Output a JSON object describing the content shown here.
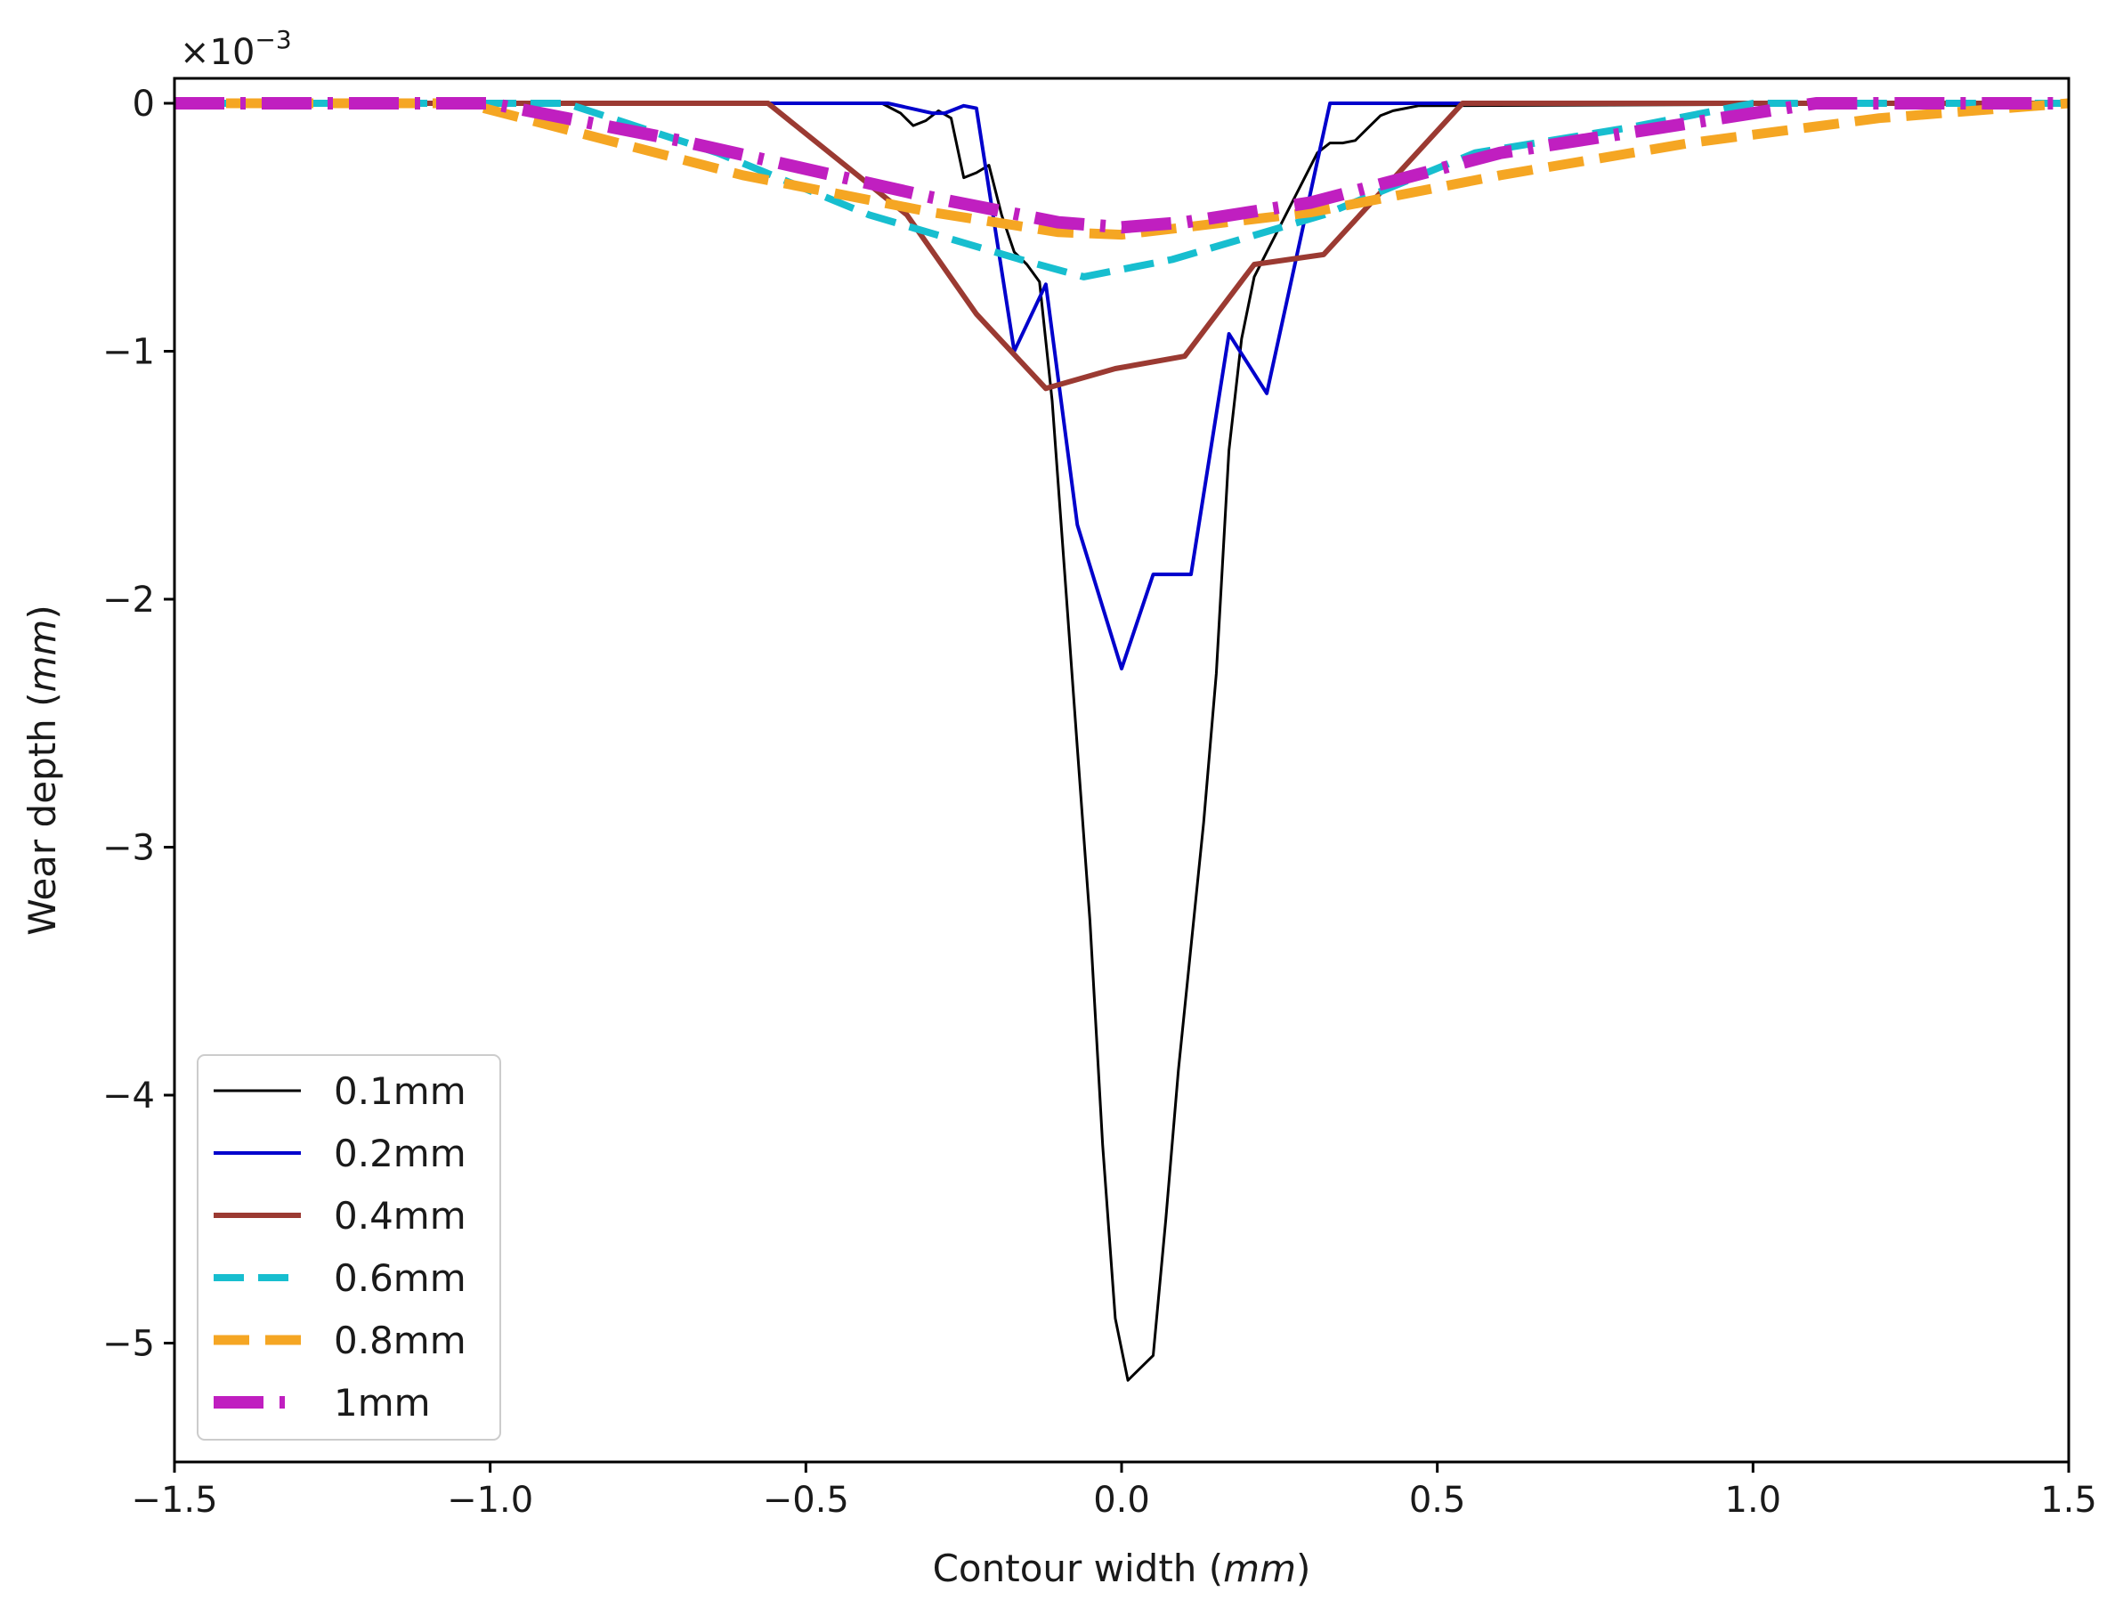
{
  "chart_data": {
    "type": "line",
    "xlabel": "Contour width",
    "xlabel_unit": "mm",
    "ylabel": "Wear depth",
    "ylabel_unit": "mm",
    "y_multiplier": "×10",
    "y_multiplier_exp": "−3",
    "xlim": [
      -1.5,
      1.5
    ],
    "ylim": [
      -5.5,
      0.1
    ],
    "xticks": [
      -1.5,
      -1.0,
      -0.5,
      0.0,
      0.5,
      1.0,
      1.5
    ],
    "xtick_labels": [
      "−1.5",
      "−1.0",
      "−0.5",
      "0.0",
      "0.5",
      "1.0",
      "1.5"
    ],
    "yticks": [
      0,
      -1,
      -2,
      -3,
      -4,
      -5
    ],
    "ytick_labels": [
      "0",
      "−1",
      "−2",
      "−3",
      "−4",
      "−5"
    ],
    "grid": false,
    "legend_position": "lower-left",
    "series": [
      {
        "name": "0.1mm",
        "color": "#000000",
        "style": "solid",
        "x": [
          -1.5,
          -0.38,
          -0.35,
          -0.33,
          -0.31,
          -0.29,
          -0.27,
          -0.25,
          -0.23,
          -0.21,
          -0.19,
          -0.17,
          -0.15,
          -0.13,
          -0.11,
          -0.09,
          -0.07,
          -0.05,
          -0.03,
          -0.01,
          0.01,
          0.03,
          0.05,
          0.07,
          0.09,
          0.11,
          0.13,
          0.15,
          0.17,
          0.19,
          0.21,
          0.23,
          0.25,
          0.27,
          0.29,
          0.31,
          0.33,
          0.35,
          0.37,
          0.39,
          0.41,
          0.43,
          0.45,
          0.47,
          1.5
        ],
        "y": [
          0,
          0,
          -0.04,
          -0.09,
          -0.07,
          -0.03,
          -0.06,
          -0.3,
          -0.28,
          -0.25,
          -0.45,
          -0.6,
          -0.65,
          -0.72,
          -1.2,
          -1.9,
          -2.6,
          -3.3,
          -4.2,
          -4.9,
          -5.15,
          -5.1,
          -5.05,
          -4.5,
          -3.9,
          -3.4,
          -2.9,
          -2.3,
          -1.4,
          -0.95,
          -0.7,
          -0.6,
          -0.5,
          -0.4,
          -0.3,
          -0.2,
          -0.16,
          -0.16,
          -0.15,
          -0.1,
          -0.05,
          -0.03,
          -0.02,
          -0.01,
          0
        ]
      },
      {
        "name": "0.2mm",
        "color": "#0000cc",
        "style": "solid",
        "x": [
          -1.5,
          -0.37,
          -0.3,
          -0.28,
          -0.25,
          -0.23,
          -0.17,
          -0.12,
          -0.07,
          0.0,
          0.05,
          0.11,
          0.17,
          0.23,
          0.33,
          0.5,
          1.5
        ],
        "y": [
          0,
          0,
          -0.04,
          -0.04,
          -0.01,
          -0.02,
          -1.0,
          -0.73,
          -1.7,
          -2.28,
          -1.9,
          -1.9,
          -0.93,
          -1.17,
          0,
          0,
          0
        ]
      },
      {
        "name": "0.4mm",
        "color": "#9b3a32",
        "style": "solid",
        "x": [
          -1.5,
          -0.56,
          -0.34,
          -0.23,
          -0.12,
          -0.01,
          0.1,
          0.21,
          0.32,
          0.54,
          1.5
        ],
        "y": [
          0,
          0,
          -0.45,
          -0.85,
          -1.15,
          -1.07,
          -1.02,
          -0.65,
          -0.61,
          0,
          0
        ]
      },
      {
        "name": "0.6mm",
        "color": "#17becf",
        "style": "dashed",
        "x": [
          -1.5,
          -0.88,
          -0.64,
          -0.4,
          -0.16,
          -0.06,
          0.08,
          0.32,
          0.56,
          0.8,
          1.0,
          1.5
        ],
        "y": [
          0,
          0,
          -0.2,
          -0.45,
          -0.63,
          -0.7,
          -0.63,
          -0.45,
          -0.2,
          -0.1,
          0,
          0
        ]
      },
      {
        "name": "0.8mm",
        "color": "#f5a623",
        "style": "dashed",
        "x": [
          -1.5,
          -1.04,
          -0.6,
          -0.3,
          -0.1,
          0.0,
          0.1,
          0.3,
          0.6,
          0.9,
          1.2,
          1.5
        ],
        "y": [
          0,
          0,
          -0.29,
          -0.44,
          -0.52,
          -0.53,
          -0.5,
          -0.44,
          -0.29,
          -0.16,
          -0.06,
          0
        ]
      },
      {
        "name": "1mm",
        "color": "#c01fc0",
        "style": "dashdot",
        "x": [
          -1.5,
          -1.0,
          -0.7,
          -0.3,
          -0.1,
          0.0,
          0.1,
          0.3,
          0.6,
          0.85,
          1.1,
          1.5
        ],
        "y": [
          0,
          0,
          -0.15,
          -0.38,
          -0.48,
          -0.5,
          -0.48,
          -0.4,
          -0.2,
          -0.1,
          0,
          0
        ]
      }
    ]
  }
}
